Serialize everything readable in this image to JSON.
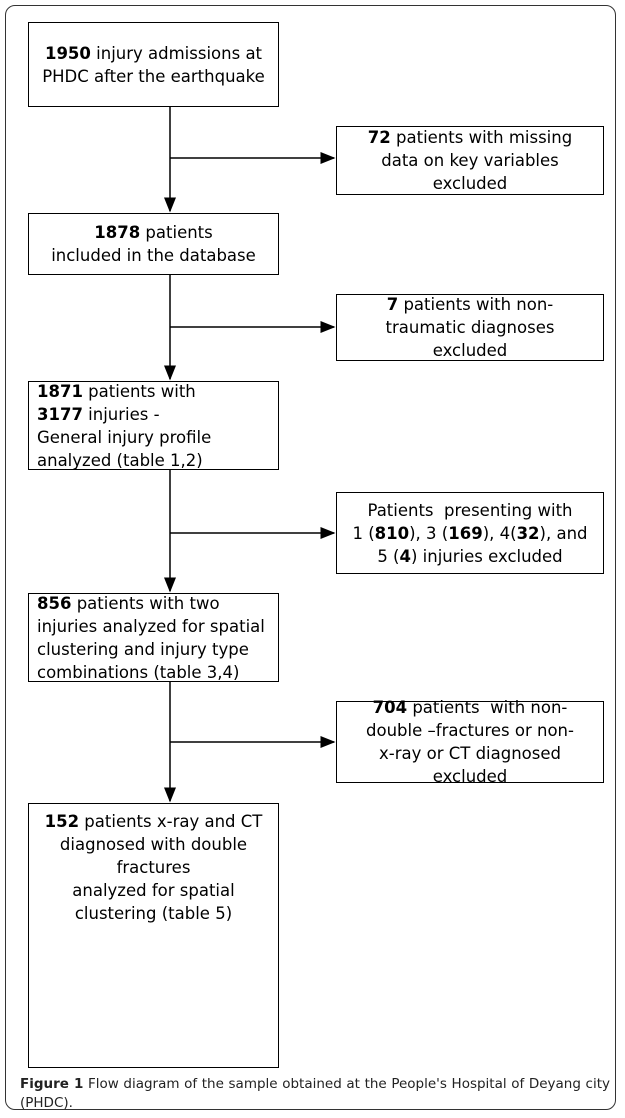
{
  "nodes": [
    {
      "lines": [
        [
          {
            "text": "1950",
            "bold": true
          },
          {
            "text": " injury admissions at"
          }
        ],
        [
          {
            "text": "PHDC after the earthquake"
          }
        ]
      ]
    },
    {
      "lines": [
        [
          {
            "text": "72",
            "bold": true
          },
          {
            "text": " patients with missing"
          }
        ],
        [
          {
            "text": "data on key variables"
          }
        ],
        [
          {
            "text": "excluded"
          }
        ]
      ]
    },
    {
      "lines": [
        [
          {
            "text": "1878",
            "bold": true
          },
          {
            "text": " patients"
          }
        ],
        [
          {
            "text": "included in the database"
          }
        ]
      ]
    },
    {
      "lines": [
        [
          {
            "text": "7",
            "bold": true
          },
          {
            "text": " patients with non-"
          }
        ],
        [
          {
            "text": "traumatic diagnoses"
          }
        ],
        [
          {
            "text": "excluded"
          }
        ]
      ]
    },
    {
      "lines": [
        [
          {
            "text": "1871",
            "bold": true
          },
          {
            "text": " patients with"
          }
        ],
        [
          {
            "text": "3177",
            "bold": true
          },
          {
            "text": " injuries -"
          }
        ],
        [
          {
            "text": "General injury profile"
          }
        ],
        [
          {
            "text": "analyzed (table 1,2)"
          }
        ]
      ]
    },
    {
      "lines": [
        [
          {
            "text": "Patients  presenting with"
          }
        ],
        [
          {
            "text": "1 ("
          },
          {
            "text": "810",
            "bold": true
          },
          {
            "text": "), 3 ("
          },
          {
            "text": "169",
            "bold": true
          },
          {
            "text": "), 4("
          },
          {
            "text": "32",
            "bold": true
          },
          {
            "text": "), and"
          }
        ],
        [
          {
            "text": "5 ("
          },
          {
            "text": "4",
            "bold": true
          },
          {
            "text": ") injuries excluded"
          }
        ]
      ]
    },
    {
      "lines": [
        [
          {
            "text": "856",
            "bold": true
          },
          {
            "text": " patients with two"
          }
        ],
        [
          {
            "text": "injuries analyzed for spatial"
          }
        ],
        [
          {
            "text": "clustering and injury type"
          }
        ],
        [
          {
            "text": "combinations (table 3,4)"
          }
        ]
      ]
    },
    {
      "lines": [
        [
          {
            "text": "704",
            "bold": true
          },
          {
            "text": " patients  with non-"
          }
        ],
        [
          {
            "text": "double –fractures or non-"
          }
        ],
        [
          {
            "text": "x-ray or CT diagnosed"
          }
        ],
        [
          {
            "text": "excluded"
          }
        ]
      ]
    },
    {
      "lines": [
        [
          {
            "text": "152",
            "bold": true
          },
          {
            "text": " patients x-ray and CT"
          }
        ],
        [
          {
            "text": "diagnosed with double"
          }
        ],
        [
          {
            "text": "fractures"
          }
        ],
        [
          {
            "text": "analyzed for spatial"
          }
        ],
        [
          {
            "text": "clustering (table 5)"
          }
        ]
      ]
    }
  ],
  "caption": {
    "segments": [
      {
        "text": "Figure 1",
        "bold": true
      },
      {
        "text": " Flow diagram of the sample obtained at the People's Hospital of Deyang city (PHDC)."
      }
    ]
  }
}
